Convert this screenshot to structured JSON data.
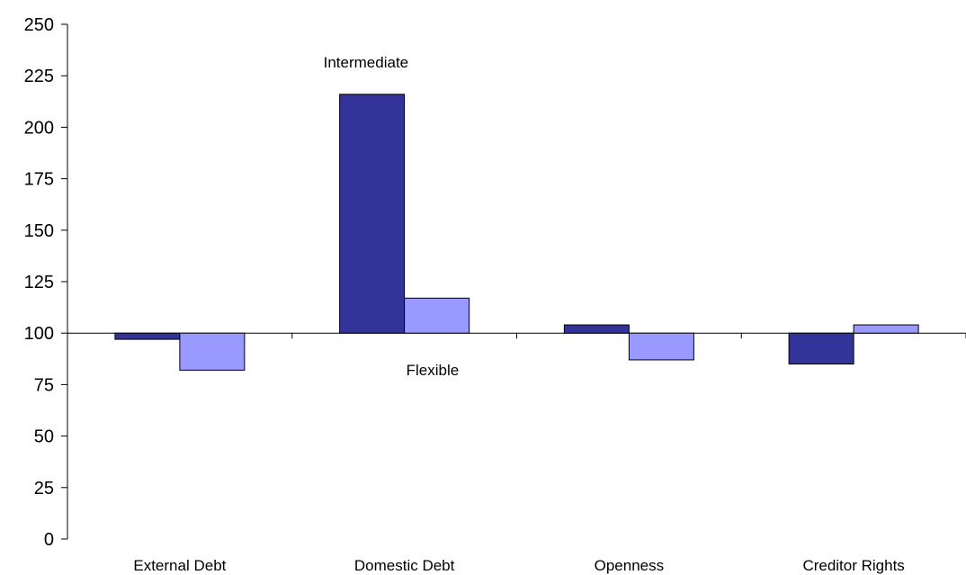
{
  "chart_data": {
    "type": "bar",
    "categories": [
      "External Debt",
      "Domestic Debt",
      "Openness",
      "Creditor Rights"
    ],
    "series": [
      {
        "color": "#333399",
        "values": [
          97,
          216,
          104,
          85
        ]
      },
      {
        "color": "#9999ff",
        "values": [
          82,
          117,
          87,
          104
        ]
      }
    ],
    "baseline": 100,
    "ylim": [
      0,
      250
    ],
    "yticks": [
      0,
      25,
      50,
      75,
      100,
      125,
      150,
      175,
      200,
      225,
      250
    ],
    "annotations": [
      "Intermediate",
      "Flexible"
    ],
    "title": "",
    "xlabel": "",
    "ylabel": ""
  }
}
